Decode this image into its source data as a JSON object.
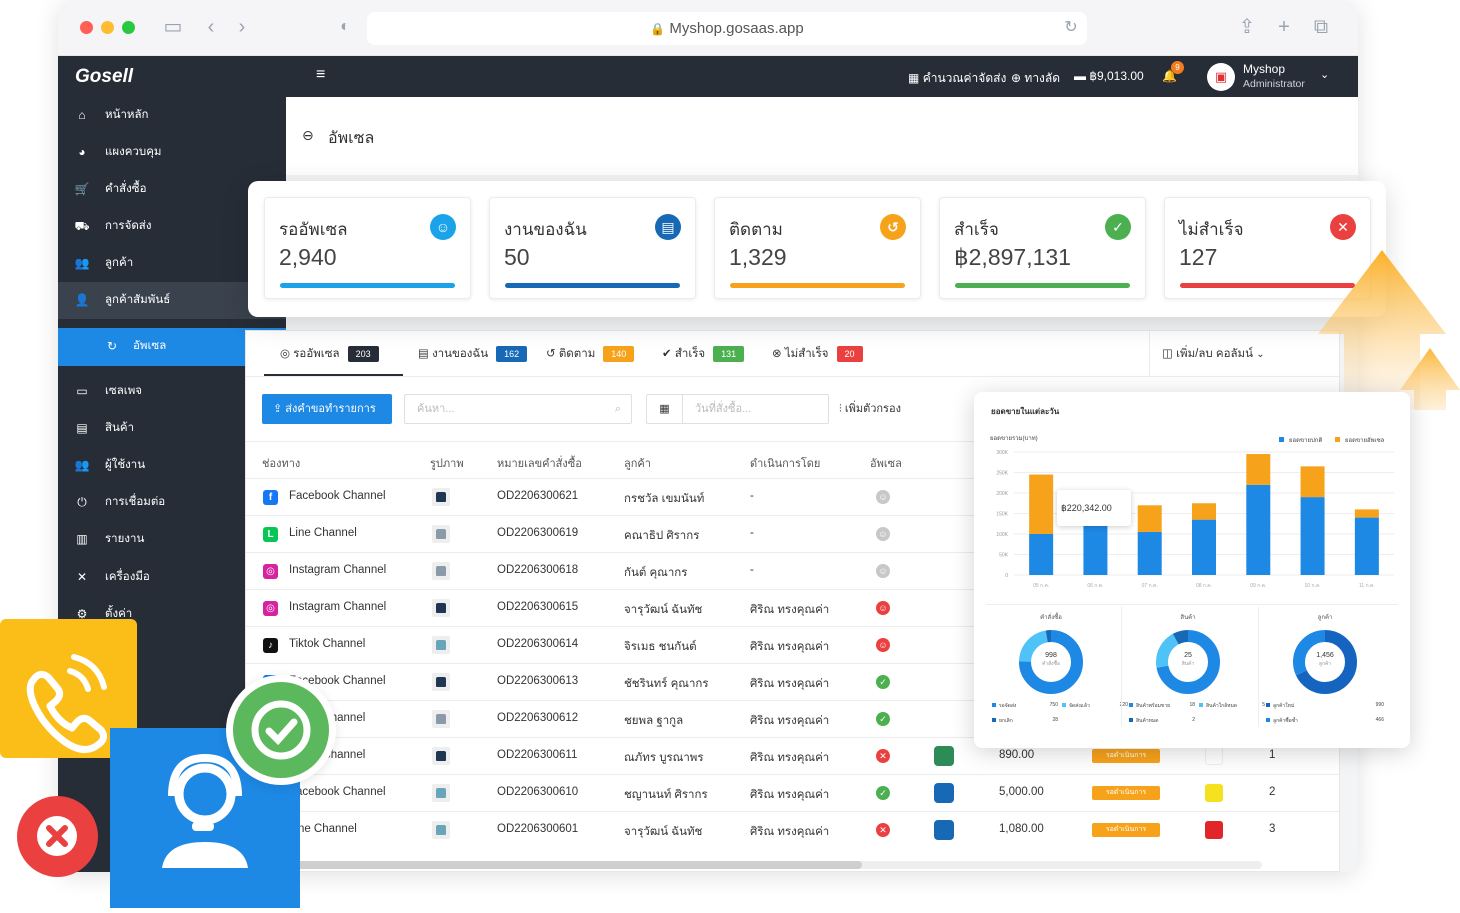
{
  "browser": {
    "url": "Myshop.gosaas.app"
  },
  "topnav": {
    "logo": "Gosell",
    "shipping_calc": "คำนวณค่าจัดส่ง",
    "shortcut": "ทางลัด",
    "balance": "฿9,013.00",
    "notif_count": "9",
    "shop_name": "Myshop",
    "role": "Administrator"
  },
  "sidebar": {
    "items": [
      {
        "label": "หน้าหลัก"
      },
      {
        "label": "แผงควบคุม"
      },
      {
        "label": "คำสั่งซื้อ"
      },
      {
        "label": "การจัดส่ง"
      },
      {
        "label": "ลูกค้า"
      },
      {
        "label": "ลูกค้าสัมพันธ์"
      },
      {
        "label": "อัพเซล"
      },
      {
        "label": "เซลเพจ"
      },
      {
        "label": "สินค้า"
      },
      {
        "label": "ผู้ใช้งาน"
      },
      {
        "label": "การเชื่อมต่อ"
      },
      {
        "label": "รายงาน"
      },
      {
        "label": "เครื่องมือ"
      },
      {
        "label": "ตั้งค่า"
      }
    ]
  },
  "page": {
    "title": "อัพเซล"
  },
  "stats": [
    {
      "title": "รออัพเซล",
      "value": "2,940",
      "color": "#1aa3e8"
    },
    {
      "title": "งานของฉัน",
      "value": "50",
      "color": "#1769b6"
    },
    {
      "title": "ติดตาม",
      "value": "1,329",
      "color": "#f7a21b"
    },
    {
      "title": "สำเร็จ",
      "value": "฿2,897,131",
      "color": "#4caf50"
    },
    {
      "title": "ไม่สำเร็จ",
      "value": "127",
      "color": "#ea4040"
    }
  ],
  "tabs": [
    {
      "label": "รออัพเซล",
      "count": "203",
      "color": "#262d37"
    },
    {
      "label": "งานของฉัน",
      "count": "162",
      "color": "#1769b6"
    },
    {
      "label": "ติดตาม",
      "count": "140",
      "color": "#f7a21b"
    },
    {
      "label": "สำเร็จ",
      "count": "131",
      "color": "#4caf50"
    },
    {
      "label": "ไม่สำเร็จ",
      "count": "20",
      "color": "#ea4040"
    }
  ],
  "toolbar": {
    "columns_label": "เพิ่ม/ลบ คอลัมน์",
    "export_button": "ส่งคำขอทำรายการ",
    "search_placeholder": "ค้นหา...",
    "date_placeholder": "วันที่สั่งซื้อ...",
    "filter_label": "เพิ่มตัวกรอง"
  },
  "table": {
    "headers": [
      "ช่องทาง",
      "รูปภาพ",
      "หมายเลขคำสั่งซื้อ",
      "ลูกค้า",
      "ดำเนินการโดย",
      "อัพเซล"
    ],
    "rows": [
      {
        "channel": "Facebook Channel",
        "order": "OD2206300621",
        "customer": "กรชวัล เขมนันท์",
        "by": "-",
        "status": "pending"
      },
      {
        "channel": "Line Channel",
        "order": "OD2206300619",
        "customer": "คณาธิป ศิรากร",
        "by": "-",
        "status": "pending"
      },
      {
        "channel": "Instagram Channel",
        "order": "OD2206300618",
        "customer": "กันต์ คุณากร",
        "by": "-",
        "status": "pending"
      },
      {
        "channel": "Instagram Channel",
        "order": "OD2206300615",
        "customer": "จารุวัฒน์ ฉันทัช",
        "by": "ศิริณ ทรงคุณค่า",
        "status": "assigned"
      },
      {
        "channel": "Tiktok Channel",
        "order": "OD2206300614",
        "customer": "จิรเมธ ชนกันต์",
        "by": "ศิริณ ทรงคุณค่า",
        "status": "assigned"
      },
      {
        "channel": "Facebook Channel",
        "order": "OD2206300613",
        "customer": "ชัชรินทร์ คุณากร",
        "by": "ศิริณ ทรงคุณค่า",
        "status": "success"
      },
      {
        "channel": "Tiktok Channel",
        "order": "OD2206300612",
        "customer": "ชยพล ฐากูล",
        "by": "ศิริณ ทรงคุณค่า",
        "status": "success"
      },
      {
        "channel": "Tiktok Channel",
        "order": "OD2206300611",
        "customer": "ณภัทร บูรณาพร",
        "by": "ศิริณ ทรงคุณค่า",
        "status": "fail",
        "amount": "890.00",
        "state": "รอดำเนินการ",
        "qty": "1"
      },
      {
        "channel": "Facebook Channel",
        "order": "OD2206300610",
        "customer": "ชญานนท์ ศิรากร",
        "by": "ศิริณ ทรงคุณค่า",
        "status": "success",
        "amount": "5,000.00",
        "state": "รอดำเนินการ",
        "qty": "2"
      },
      {
        "channel": "Line Channel",
        "order": "OD2206300601",
        "customer": "จารุวัฒน์ ฉันทัช",
        "by": "ศิริณ ทรงคุณค่า",
        "status": "fail",
        "amount": "1,080.00",
        "state": "รอดำเนินการ",
        "qty": "3"
      }
    ]
  },
  "chart_card": {
    "title": "ยอดขายในแต่ละวัน",
    "tooltip_value": "฿220,342.00",
    "donuts": [
      {
        "title": "คำสั่งซื้อ",
        "center": "998",
        "center_sub": "คำสั่งซื้อ",
        "legend": [
          {
            "label": "รอจัดส่ง",
            "value": "750"
          },
          {
            "label": "จัดส่งแล้ว",
            "value": "220"
          },
          {
            "label": "ยกเลิก",
            "value": "28"
          }
        ]
      },
      {
        "title": "สินค้า",
        "center": "25",
        "center_sub": "สินค้า",
        "legend": [
          {
            "label": "สินค้าพร้อมขาย",
            "value": "18"
          },
          {
            "label": "สินค้าใกล้หมด",
            "value": "5"
          },
          {
            "label": "สินค้าหมด",
            "value": "2"
          }
        ]
      },
      {
        "title": "ลูกค้า",
        "center": "1,456",
        "center_sub": "ลูกค้า",
        "legend": [
          {
            "label": "ลูกค้าใหม่",
            "value": "990"
          },
          {
            "label": "ลูกค้าซื้อซ้ำ",
            "value": "466"
          }
        ]
      }
    ]
  },
  "chart_data": {
    "type": "bar",
    "title": "ยอดขายในแต่ละวัน",
    "ylabel": "ยอดขายรวม(บาท)",
    "yticks": [
      "300K",
      "250K",
      "200K",
      "150K",
      "100K",
      "50K",
      "0"
    ],
    "ylim": [
      0,
      300000
    ],
    "categories": [
      "05 ก.ค.",
      "06 ก.ค.",
      "07 ก.ค.",
      "08 ก.ค.",
      "09 ก.ค.",
      "10 ก.ค.",
      "11 ก.ค."
    ],
    "stacked": true,
    "series": [
      {
        "name": "ยอดขายปกติ",
        "color": "#1e88e5",
        "values": [
          100000,
          140000,
          105000,
          135000,
          220000,
          190000,
          140000
        ]
      },
      {
        "name": "ยอดขายอัพเซล",
        "color": "#f7a21b",
        "values": [
          145000,
          30000,
          65000,
          40000,
          75000,
          75000,
          20000
        ]
      }
    ],
    "legend": "top-right"
  },
  "colors": {
    "accent": "#1e88e5",
    "dark": "#262d37",
    "yellow": "#fbbd18",
    "success": "#4caf50",
    "danger": "#ea4040"
  }
}
